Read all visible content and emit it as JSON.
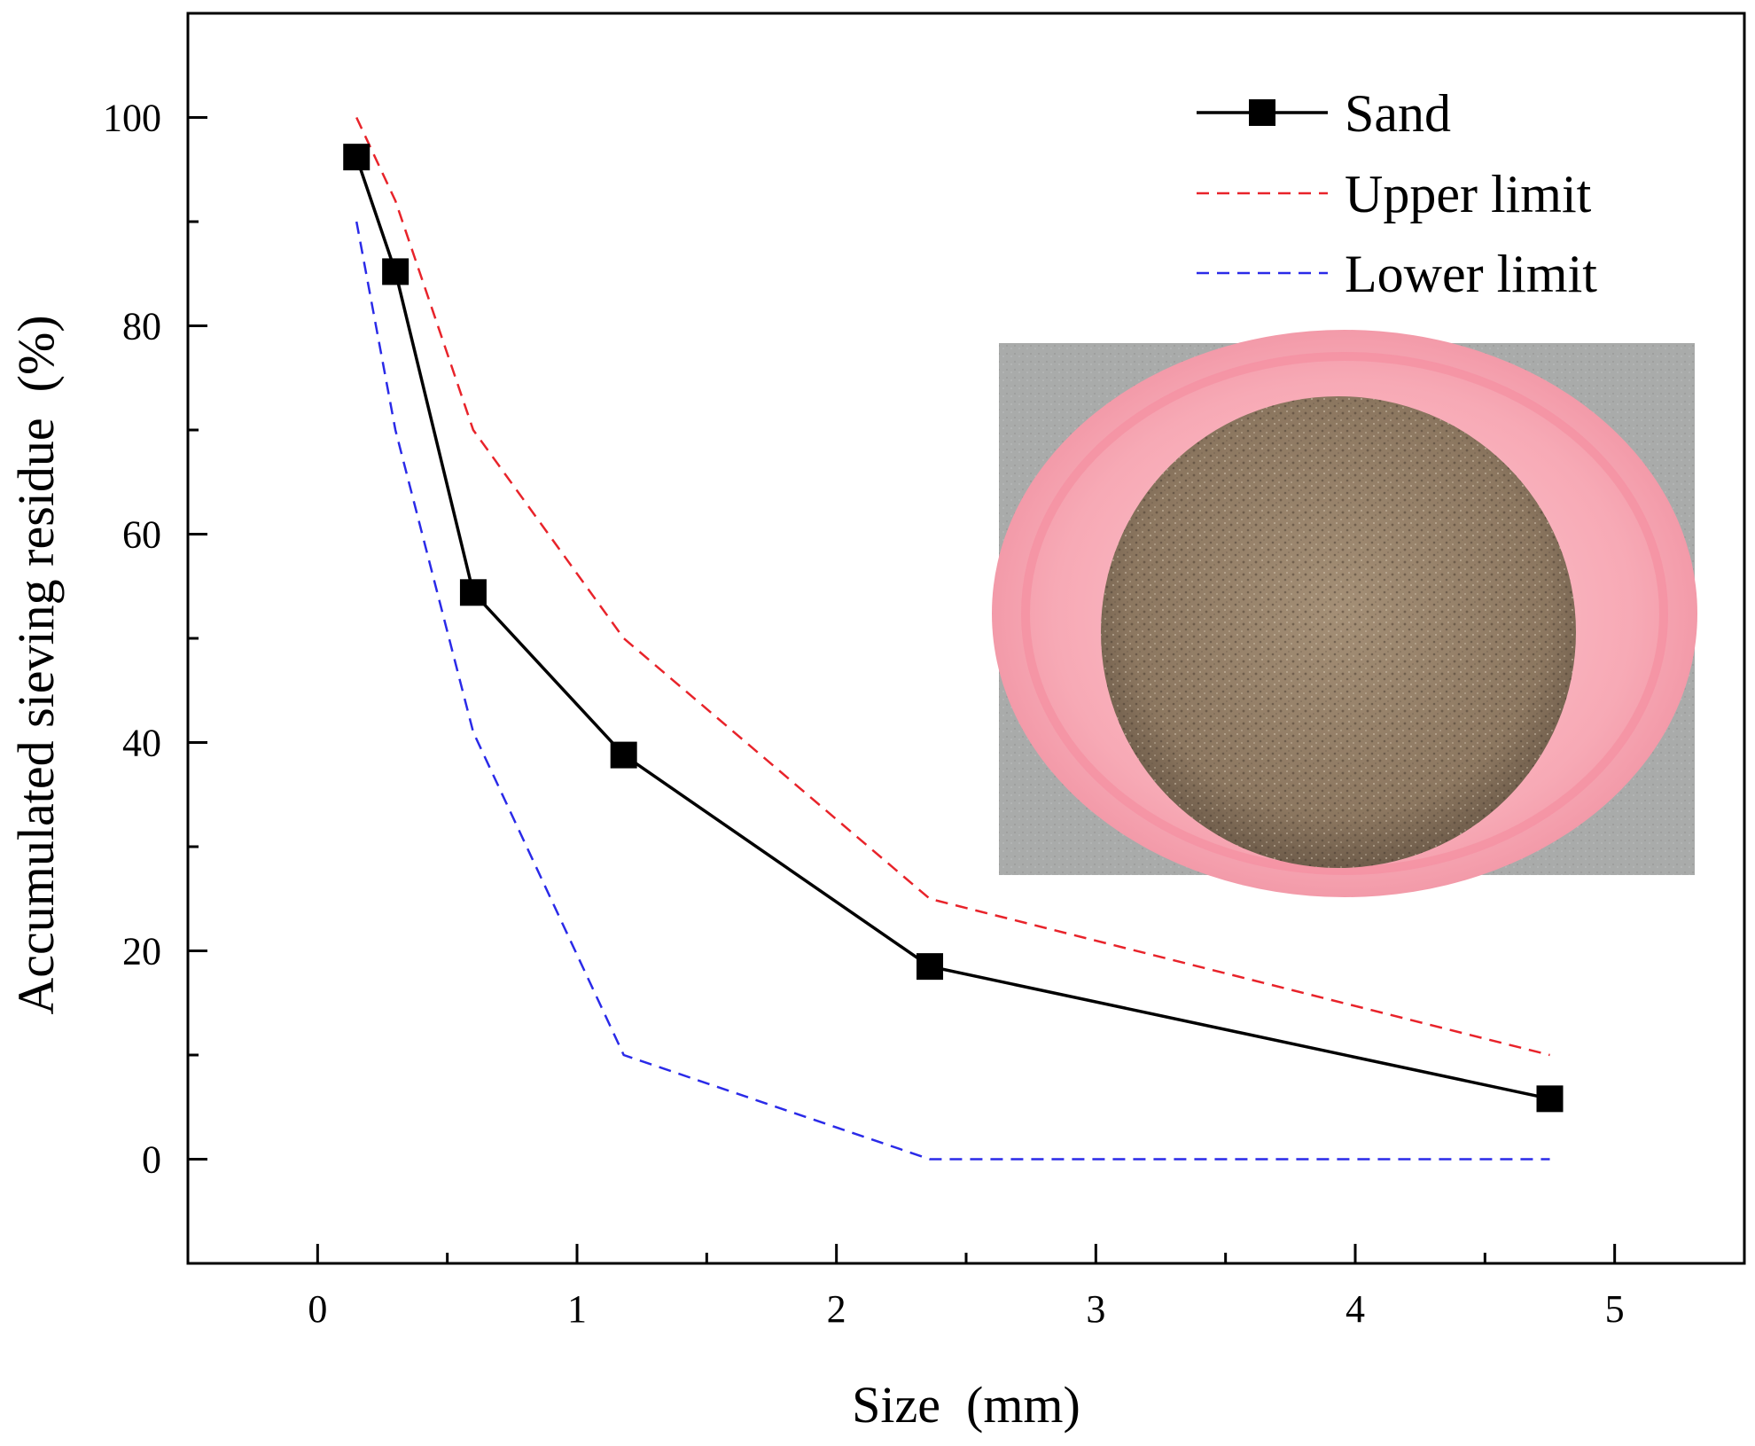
{
  "chart_data": {
    "type": "line",
    "xlabel": "Size  (mm)",
    "ylabel": "Accumulated sieving residue  (%)",
    "xlim": [
      -0.5,
      5.5
    ],
    "ylim": [
      -10,
      110
    ],
    "x_ticks": [
      "0",
      "1",
      "2",
      "3",
      "4",
      "5"
    ],
    "y_ticks": [
      "0",
      "20",
      "40",
      "60",
      "80",
      "100"
    ],
    "grid": false,
    "legend_position": "top-right",
    "series": [
      {
        "name": "Sand",
        "color": "#000000",
        "style": "solid",
        "marker": "square",
        "x": [
          0.15,
          0.3,
          0.6,
          1.18,
          2.36,
          4.75
        ],
        "y": [
          96.2,
          85.2,
          54.4,
          38.8,
          18.5,
          5.8
        ]
      },
      {
        "name": "Upper limit",
        "color": "#e8232a",
        "style": "dashed",
        "marker": "none",
        "x": [
          0.15,
          0.3,
          0.6,
          1.18,
          2.36,
          4.75
        ],
        "y": [
          100,
          92,
          70,
          50,
          25,
          10
        ]
      },
      {
        "name": "Lower limit",
        "color": "#2a2ae8",
        "style": "dashed",
        "marker": "none",
        "x": [
          0.15,
          0.3,
          0.6,
          1.18,
          2.36,
          4.75
        ],
        "y": [
          90,
          70,
          41,
          10,
          0,
          0
        ]
      }
    ],
    "inset_image": "sand-in-pink-bowl-photo"
  }
}
